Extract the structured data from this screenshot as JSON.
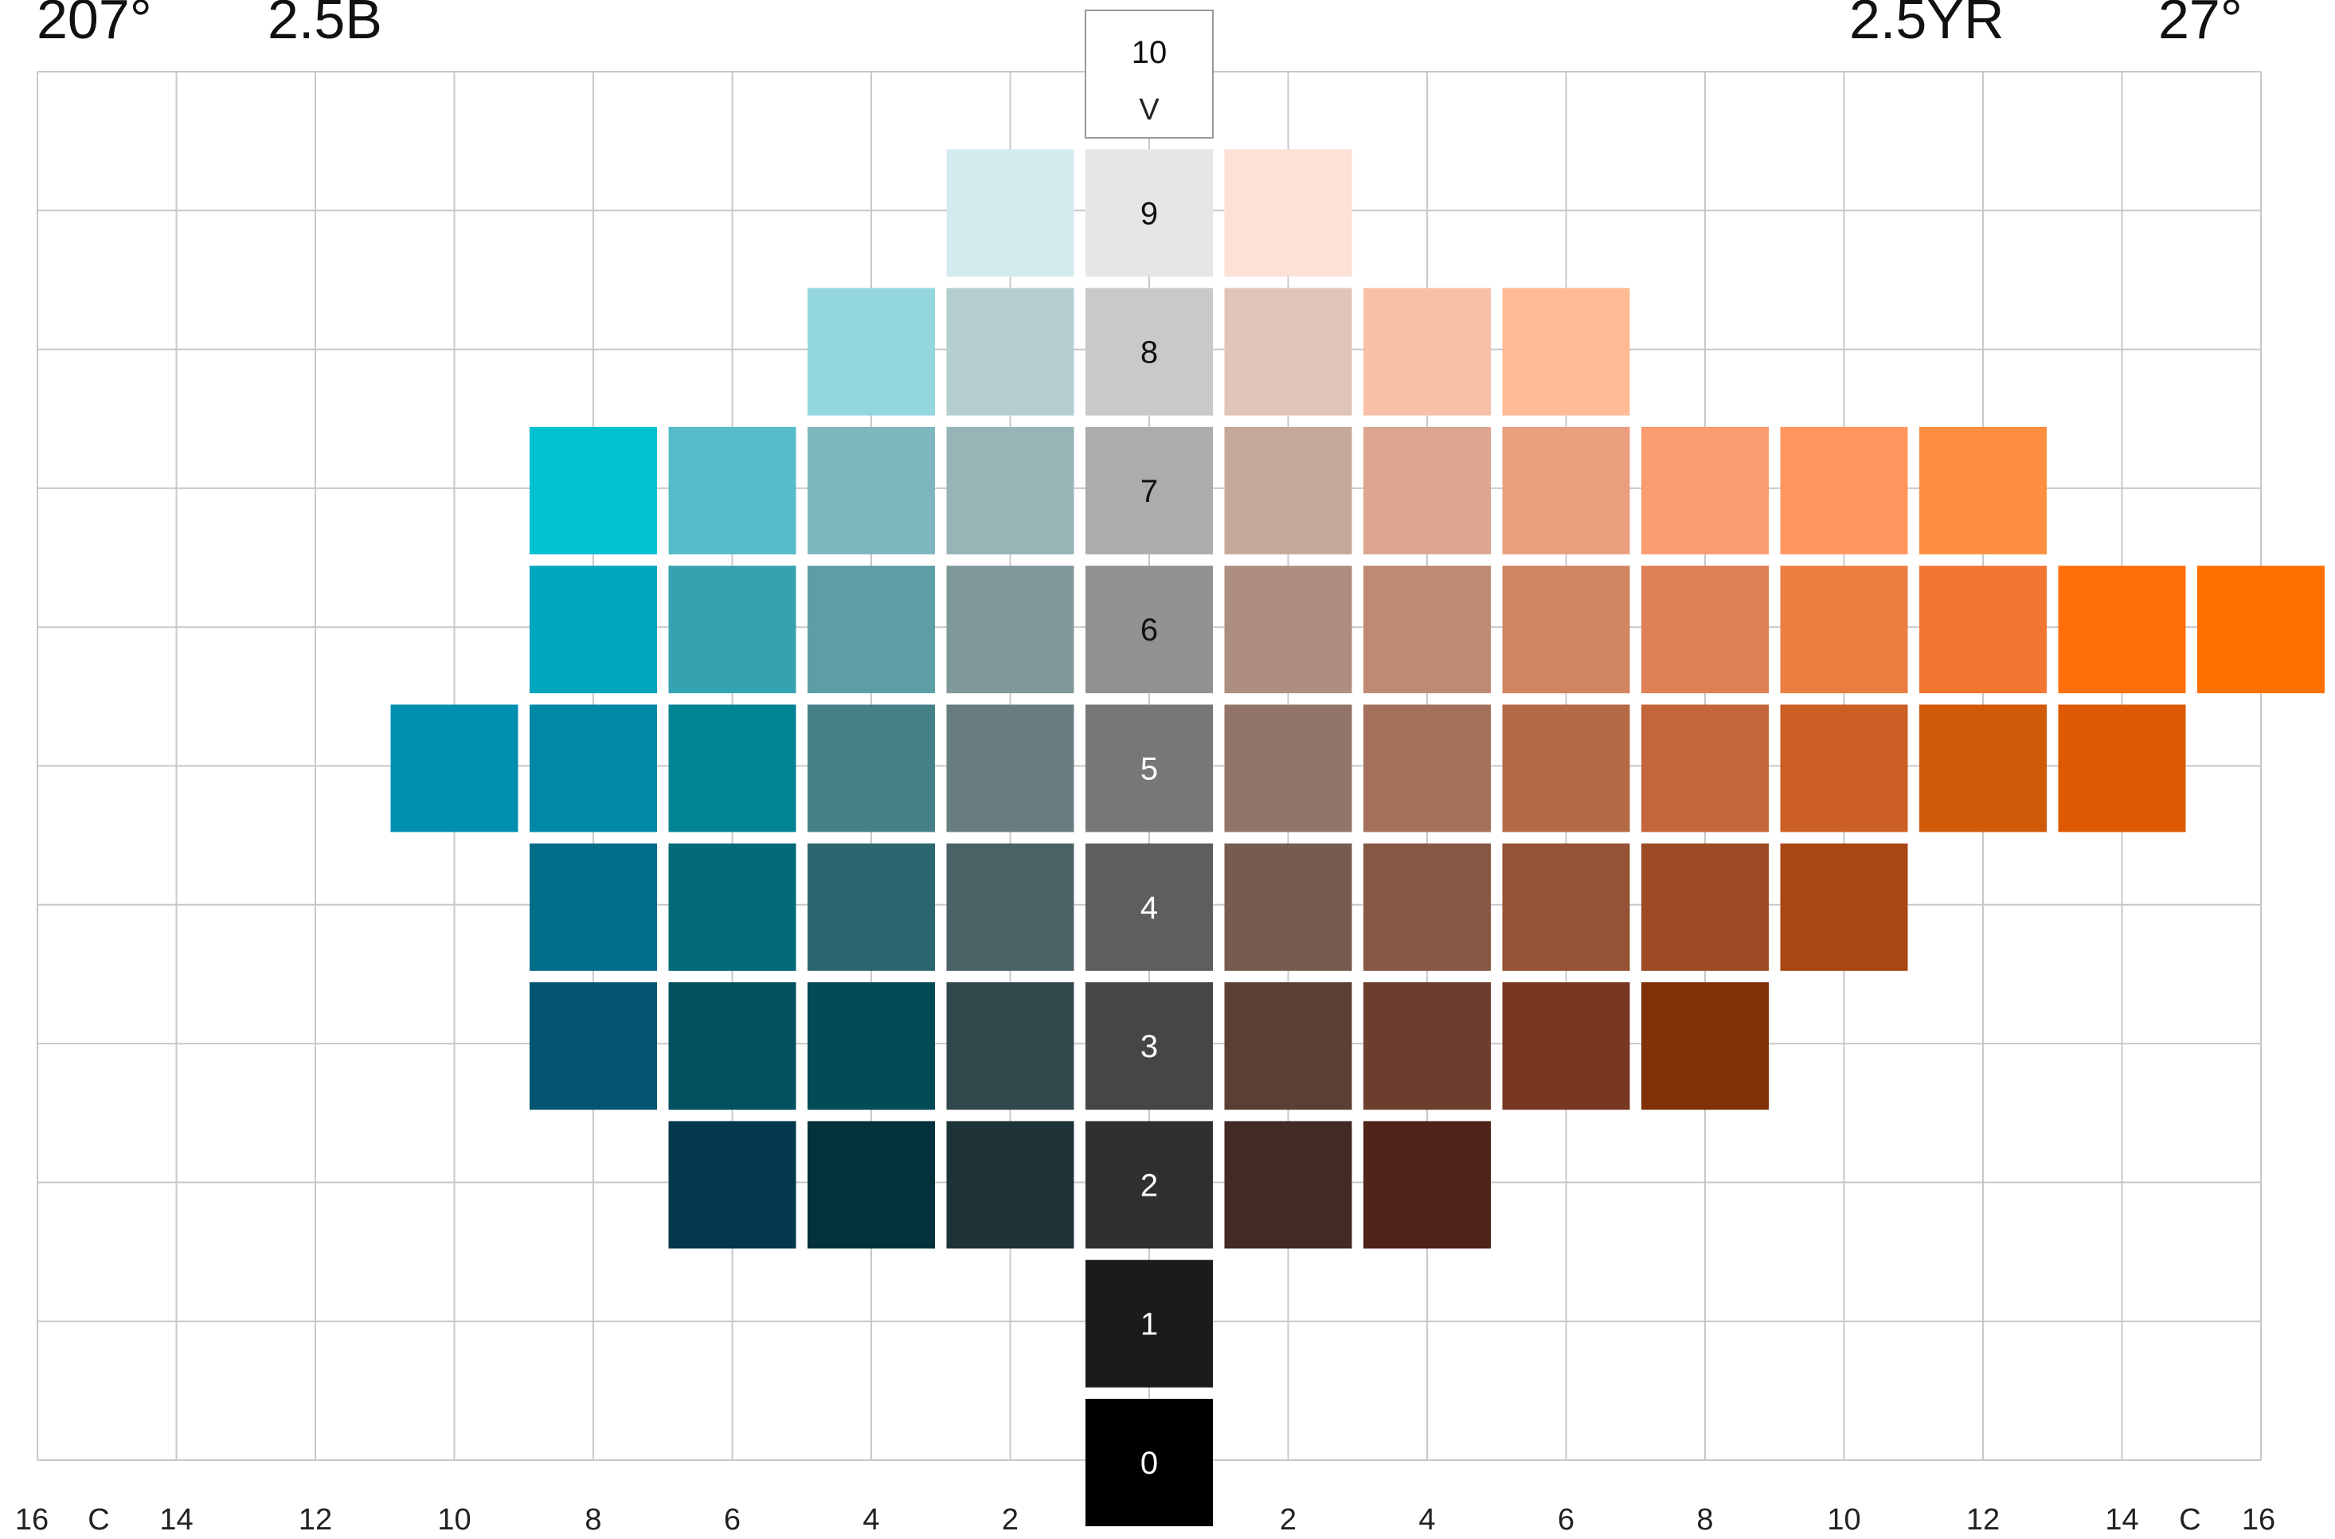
{
  "chart_data": {
    "type": "heatmap",
    "title": "",
    "header": {
      "left_degree": "207°",
      "left_hue": "2.5B",
      "right_hue": "2.5YR",
      "right_degree": "27°"
    },
    "value_axis_label": "V",
    "chroma_axis_label": "C",
    "x_ticks_left": [
      "16",
      "14",
      "12",
      "10",
      "8",
      "6",
      "4",
      "2"
    ],
    "x_ticks_right": [
      "2",
      "4",
      "6",
      "8",
      "10",
      "12",
      "14",
      "16"
    ],
    "xlim_left": [
      0,
      16
    ],
    "xlim_right": [
      0,
      16
    ],
    "ylim": [
      0,
      10
    ],
    "grid": true,
    "neutral_column": [
      {
        "value": 10,
        "label": "10",
        "color": "#ffffff",
        "text_color": "#111111"
      },
      {
        "value": 9,
        "label": "9",
        "color": "#e6e6e6",
        "text_color": "#111111"
      },
      {
        "value": 8,
        "label": "8",
        "color": "#c9c9c9",
        "text_color": "#111111"
      },
      {
        "value": 7,
        "label": "7",
        "color": "#acacac",
        "text_color": "#111111"
      },
      {
        "value": 6,
        "label": "6",
        "color": "#919191",
        "text_color": "#111111"
      },
      {
        "value": 5,
        "label": "5",
        "color": "#777777",
        "text_color": "#ffffff"
      },
      {
        "value": 4,
        "label": "4",
        "color": "#5e5e5e",
        "text_color": "#ffffff"
      },
      {
        "value": 3,
        "label": "3",
        "color": "#464646",
        "text_color": "#ffffff"
      },
      {
        "value": 2,
        "label": "2",
        "color": "#303030",
        "text_color": "#ffffff"
      },
      {
        "value": 1,
        "label": "1",
        "color": "#1b1b1b",
        "text_color": "#ffffff"
      },
      {
        "value": 0,
        "label": "0",
        "color": "#000000",
        "text_color": "#ffffff"
      }
    ],
    "left_hue_chips": [
      {
        "value": 9,
        "chroma": 2,
        "color": "#d3ebee"
      },
      {
        "value": 8,
        "chroma": 4,
        "color": "#93d6de"
      },
      {
        "value": 8,
        "chroma": 2,
        "color": "#b4ced0"
      },
      {
        "value": 7,
        "chroma": 8,
        "color": "#00c0d2"
      },
      {
        "value": 7,
        "chroma": 6,
        "color": "#57bcc9"
      },
      {
        "value": 7,
        "chroma": 4,
        "color": "#7db7bd"
      },
      {
        "value": 7,
        "chroma": 2,
        "color": "#97b4b6"
      },
      {
        "value": 6,
        "chroma": 8,
        "color": "#00a5be"
      },
      {
        "value": 6,
        "chroma": 6,
        "color": "#34a2b1"
      },
      {
        "value": 6,
        "chroma": 4,
        "color": "#5d9ea5"
      },
      {
        "value": 6,
        "chroma": 2,
        "color": "#7f9899"
      },
      {
        "value": 5,
        "chroma": 10,
        "color": "#008fb1"
      },
      {
        "value": 5,
        "chroma": 8,
        "color": "#0088a4"
      },
      {
        "value": 5,
        "chroma": 6,
        "color": "#008392"
      },
      {
        "value": 5,
        "chroma": 4,
        "color": "#468087"
      },
      {
        "value": 5,
        "chroma": 2,
        "color": "#677d7f"
      },
      {
        "value": 4,
        "chroma": 8,
        "color": "#006d8a"
      },
      {
        "value": 4,
        "chroma": 6,
        "color": "#026a79"
      },
      {
        "value": 4,
        "chroma": 4,
        "color": "#2c676f"
      },
      {
        "value": 4,
        "chroma": 2,
        "color": "#4b6266"
      },
      {
        "value": 3,
        "chroma": 8,
        "color": "#035572"
      },
      {
        "value": 3,
        "chroma": 6,
        "color": "#035061"
      },
      {
        "value": 3,
        "chroma": 4,
        "color": "#034b56"
      },
      {
        "value": 3,
        "chroma": 2,
        "color": "#31494c"
      },
      {
        "value": 2,
        "chroma": 6,
        "color": "#03374c"
      },
      {
        "value": 2,
        "chroma": 4,
        "color": "#03323c"
      },
      {
        "value": 2,
        "chroma": 2,
        "color": "#1e3337"
      }
    ],
    "right_hue_chips": [
      {
        "value": 9,
        "chroma": 2,
        "color": "#fde0d6"
      },
      {
        "value": 8,
        "chroma": 2,
        "color": "#e0c4ba"
      },
      {
        "value": 8,
        "chroma": 4,
        "color": "#f7c0a7"
      },
      {
        "value": 8,
        "chroma": 6,
        "color": "#ffbb95"
      },
      {
        "value": 7,
        "chroma": 2,
        "color": "#c6a89b"
      },
      {
        "value": 7,
        "chroma": 4,
        "color": "#dca590"
      },
      {
        "value": 7,
        "chroma": 6,
        "color": "#ea9e7e"
      },
      {
        "value": 7,
        "chroma": 8,
        "color": "#fa9b70"
      },
      {
        "value": 7,
        "chroma": 10,
        "color": "#ff965e"
      },
      {
        "value": 7,
        "chroma": 12,
        "color": "#ff8f40"
      },
      {
        "value": 6,
        "chroma": 2,
        "color": "#ae8e81"
      },
      {
        "value": 6,
        "chroma": 4,
        "color": "#bf8a74"
      },
      {
        "value": 6,
        "chroma": 6,
        "color": "#d08462"
      },
      {
        "value": 6,
        "chroma": 8,
        "color": "#de7f55"
      },
      {
        "value": 6,
        "chroma": 10,
        "color": "#ea7e40"
      },
      {
        "value": 6,
        "chroma": 12,
        "color": "#f37631"
      },
      {
        "value": 6,
        "chroma": 14,
        "color": "#ff6f0c"
      },
      {
        "value": 6,
        "chroma": 16,
        "color": "#ff7000"
      },
      {
        "value": 5,
        "chroma": 2,
        "color": "#937468"
      },
      {
        "value": 5,
        "chroma": 4,
        "color": "#a4705b"
      },
      {
        "value": 5,
        "chroma": 6,
        "color": "#b46a47"
      },
      {
        "value": 5,
        "chroma": 8,
        "color": "#c3663b"
      },
      {
        "value": 5,
        "chroma": 10,
        "color": "#cc5f25"
      },
      {
        "value": 5,
        "chroma": 12,
        "color": "#d05a07"
      },
      {
        "value": 5,
        "chroma": 14,
        "color": "#de5903"
      },
      {
        "value": 4,
        "chroma": 2,
        "color": "#775b50"
      },
      {
        "value": 4,
        "chroma": 4,
        "color": "#875745"
      },
      {
        "value": 4,
        "chroma": 6,
        "color": "#955235"
      },
      {
        "value": 4,
        "chroma": 8,
        "color": "#9d4b24"
      },
      {
        "value": 4,
        "chroma": 10,
        "color": "#a84714"
      },
      {
        "value": 3,
        "chroma": 2,
        "color": "#5b3f33"
      },
      {
        "value": 3,
        "chroma": 4,
        "color": "#6c3e2e"
      },
      {
        "value": 3,
        "chroma": 6,
        "color": "#783720"
      },
      {
        "value": 3,
        "chroma": 8,
        "color": "#803107"
      },
      {
        "value": 2,
        "chroma": 2,
        "color": "#432a25"
      },
      {
        "value": 2,
        "chroma": 4,
        "color": "#4e2418"
      }
    ]
  }
}
